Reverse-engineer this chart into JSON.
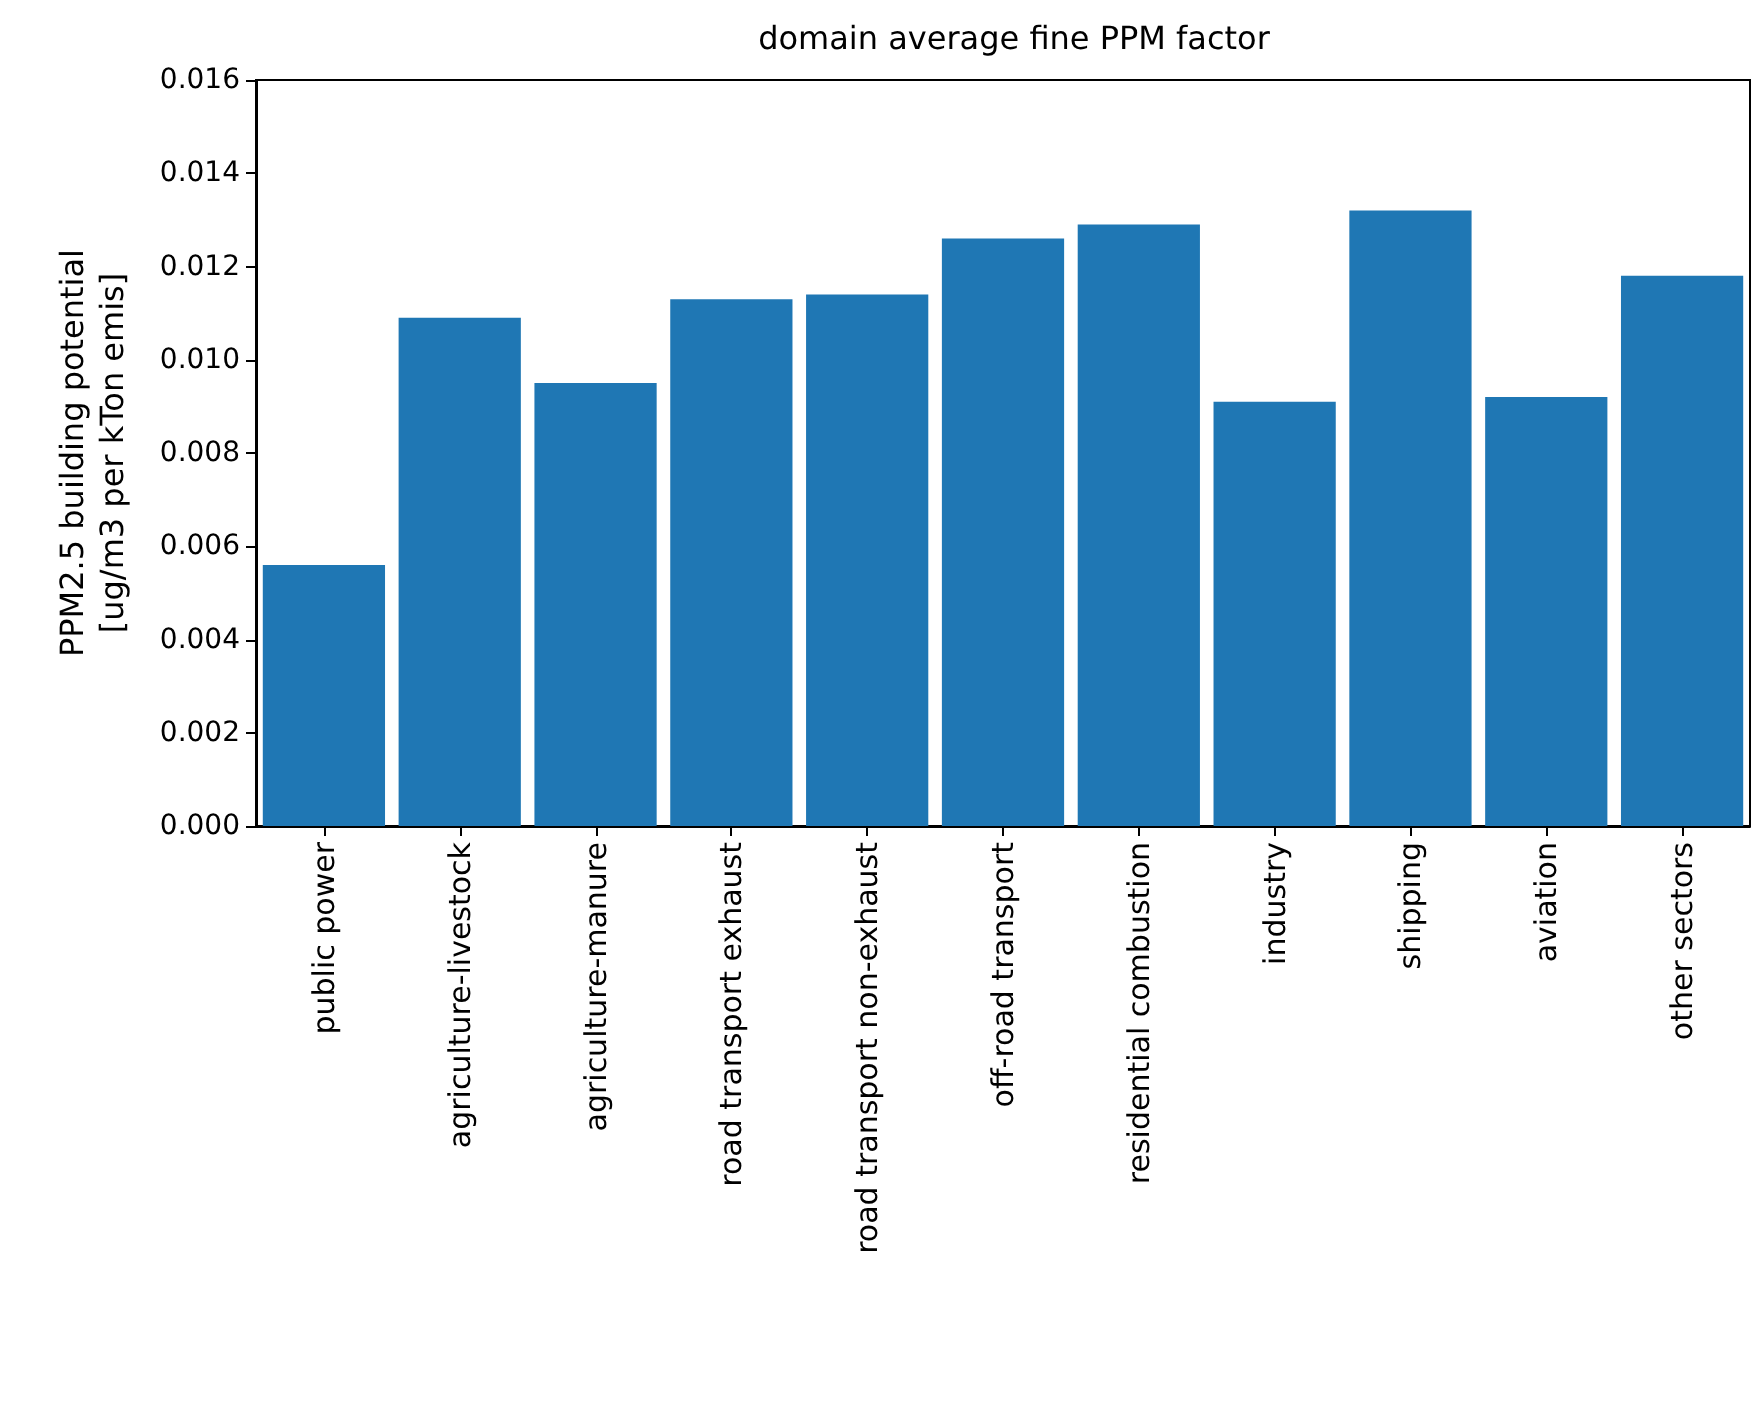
{
  "chart_data": {
    "type": "bar",
    "title": "domain average fine PPM factor",
    "ylabel": "PPM2.5 building potential\n[ug/m3 per kTon emis]",
    "categories": [
      "public power",
      "agriculture-livestock",
      "agriculture-manure",
      "road transport exhaust",
      "road transport non-exhaust",
      "off-road transport",
      "residential combustion",
      "industry",
      "shipping",
      "aviation",
      "other sectors"
    ],
    "values": [
      0.0056,
      0.0109,
      0.0095,
      0.0113,
      0.0114,
      0.0126,
      0.0129,
      0.0091,
      0.0132,
      0.0092,
      0.0118
    ],
    "color": "#1f77b4",
    "ylim": [
      0,
      0.016
    ],
    "yticks": [
      {
        "value": 0,
        "label": "0.000"
      },
      {
        "value": 0.002,
        "label": "0.002"
      },
      {
        "value": 0.004,
        "label": "0.004"
      },
      {
        "value": 0.006,
        "label": "0.006"
      },
      {
        "value": 0.008,
        "label": "0.008"
      },
      {
        "value": 0.01,
        "label": "0.010"
      },
      {
        "value": 0.012,
        "label": "0.012"
      },
      {
        "value": 0.014,
        "label": "0.014"
      },
      {
        "value": 0.016,
        "label": "0.016"
      }
    ],
    "grid": false
  }
}
